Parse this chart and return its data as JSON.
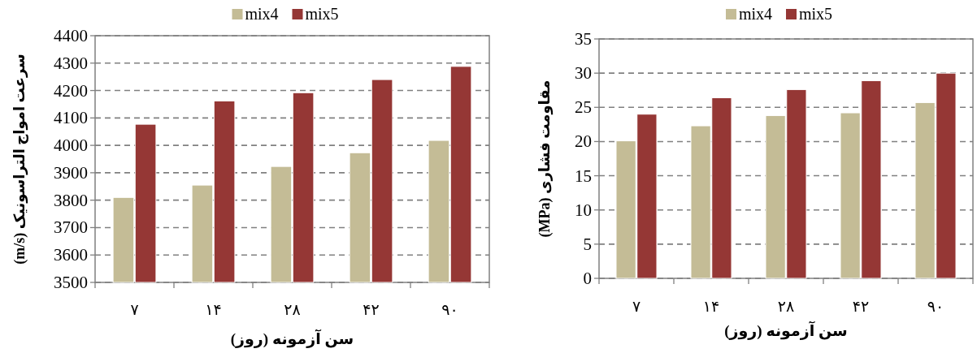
{
  "chart_data": [
    {
      "type": "bar",
      "xlabel": "سن آزمونه (روز)",
      "ylabel": "سرعت امواج التراسونیک (m/s)",
      "categories": [
        "۷",
        "۱۴",
        "۲۸",
        "۴۲",
        "۹۰"
      ],
      "series": [
        {
          "name": "mix4",
          "color": "#c4bc96",
          "values": [
            3810,
            3855,
            3923,
            3973,
            4018
          ]
        },
        {
          "name": "mix5",
          "color": "#953735",
          "values": [
            4077,
            4162,
            4192,
            4240,
            4288
          ]
        }
      ],
      "ylim": [
        3500,
        4400
      ],
      "yticks": [
        3500,
        3600,
        3700,
        3800,
        3900,
        4000,
        4100,
        4200,
        4300,
        4400
      ],
      "grid": "y",
      "legend": "top"
    },
    {
      "type": "bar",
      "xlabel": "سن آزمونه (روز)",
      "ylabel": "مقاومت فشاری (MPa)",
      "categories": [
        "۷",
        "۱۴",
        "۲۸",
        "۴۲",
        "۹۰"
      ],
      "series": [
        {
          "name": "mix4",
          "color": "#c4bc96",
          "values": [
            20.1,
            22.3,
            23.8,
            24.2,
            25.7
          ]
        },
        {
          "name": "mix5",
          "color": "#953735",
          "values": [
            24.0,
            26.4,
            27.6,
            28.9,
            30.0
          ]
        }
      ],
      "ylim": [
        0,
        35
      ],
      "yticks": [
        0,
        5,
        10,
        15,
        20,
        25,
        30,
        35
      ],
      "grid": "y",
      "legend": "top"
    }
  ]
}
